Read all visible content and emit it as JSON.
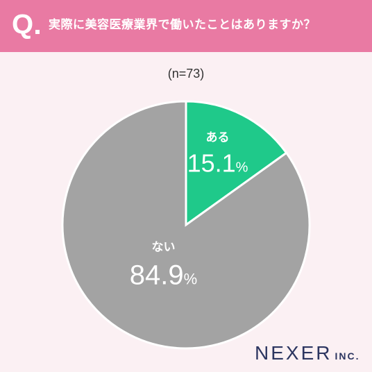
{
  "header": {
    "q_mark": "Q",
    "question": "実際に美容医療業界で働いたことはありますか？"
  },
  "sample_label": "(n=73)",
  "logo": {
    "main": "NEXER",
    "suffix": "INC."
  },
  "colors": {
    "header_bg": "#e97aa3",
    "background": "#fbf0f3",
    "slice_yes": "#1fc98a",
    "slice_no": "#a3a3a3",
    "logo": "#2c3560"
  },
  "chart_data": {
    "type": "pie",
    "title": "実際に美容医療業界で働いたことはありますか？",
    "slices": [
      {
        "label": "ある",
        "value": 15.1,
        "value_text": "15.1",
        "unit": "%",
        "color": "#1fc98a"
      },
      {
        "label": "ない",
        "value": 84.9,
        "value_text": "84.9",
        "unit": "%",
        "color": "#a3a3a3"
      }
    ]
  }
}
